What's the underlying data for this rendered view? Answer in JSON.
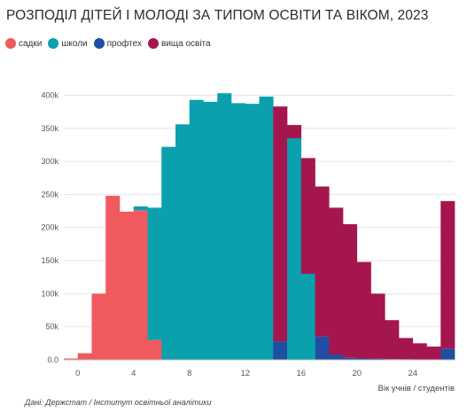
{
  "title": "РОЗПОДІЛ ДІТЕЙ І МОЛОДІ ЗА ТИПОМ ОСВІТИ ТА ВІКОМ, 2023",
  "source": "Дані: Держстат / Інститут освітньої аналітики",
  "legend": [
    {
      "label": "садки",
      "color": "#f05a5e"
    },
    {
      "label": "школи",
      "color": "#0aa0ae"
    },
    {
      "label": "профтех",
      "color": "#1f4ea3"
    },
    {
      "label": "вища освіта",
      "color": "#a5164e"
    }
  ],
  "chart_data": {
    "type": "bar",
    "stacked": true,
    "title": "РОЗПОДІЛ ДІТЕЙ І МОЛОДІ ЗА ТИПОМ ОСВІТИ ТА ВІКОМ, 2023",
    "xlabel": "Вік учнів / студентів",
    "ylabel": "",
    "xlim": [
      -1,
      27
    ],
    "ylim": [
      0,
      410000
    ],
    "grid": "horizontal",
    "legend_position": "top-left",
    "x_ticks": [
      0,
      4,
      8,
      12,
      16,
      20,
      24
    ],
    "y_ticks": [
      {
        "value": 0,
        "label": "0.0"
      },
      {
        "value": 50000,
        "label": "50k"
      },
      {
        "value": 100000,
        "label": "100k"
      },
      {
        "value": 150000,
        "label": "150k"
      },
      {
        "value": 200000,
        "label": "200k"
      },
      {
        "value": 250000,
        "label": "250k"
      },
      {
        "value": 300000,
        "label": "300k"
      },
      {
        "value": 350000,
        "label": "350k"
      },
      {
        "value": 400000,
        "label": "400k"
      }
    ],
    "x": [
      -0.5,
      0.5,
      1.5,
      2.5,
      3.5,
      4.5,
      5.5,
      6.5,
      7.5,
      8.5,
      9.5,
      10.5,
      11.5,
      12.5,
      13.5,
      14.5,
      15.5,
      16.5,
      17.5,
      18.5,
      19.5,
      20.5,
      21.5,
      22.5,
      23.5,
      24.5,
      25.5,
      26.5
    ],
    "series": [
      {
        "name": "садки",
        "color": "#f05a5e",
        "values": [
          2000,
          10000,
          100000,
          248000,
          224000,
          226000,
          30000,
          0,
          0,
          0,
          0,
          0,
          0,
          0,
          0,
          0,
          0,
          0,
          0,
          0,
          0,
          0,
          0,
          0,
          0,
          0,
          0,
          0
        ]
      },
      {
        "name": "школи",
        "color": "#0aa0ae",
        "values": [
          0,
          0,
          0,
          0,
          0,
          6000,
          200000,
          322000,
          356000,
          393000,
          390000,
          403000,
          388000,
          387000,
          398000,
          0,
          0,
          0,
          0,
          0,
          0,
          0,
          0,
          0,
          0,
          0,
          0,
          0
        ]
      },
      {
        "name": "профтех",
        "color": "#1f4ea3",
        "values": [
          0,
          0,
          0,
          0,
          0,
          0,
          0,
          0,
          0,
          0,
          0,
          0,
          0,
          0,
          0,
          28000,
          45000,
          58000,
          35000,
          8000,
          3000,
          2000,
          1500,
          1000,
          800,
          600,
          500,
          17000
        ]
      },
      {
        "name": "вища освіта",
        "color": "#a5164e",
        "values": [
          0,
          0,
          0,
          0,
          0,
          0,
          0,
          0,
          0,
          0,
          0,
          0,
          0,
          0,
          0,
          355000,
          0,
          0,
          0,
          0,
          0,
          0,
          0,
          0,
          0,
          0,
          0,
          0
        ]
      }
    ],
    "overlays": [
      {
        "series": "школи",
        "x": [
          15.5,
          16.5
        ],
        "values": [
          335000,
          130000
        ]
      },
      {
        "series": "вища освіта",
        "x": [
          15.5,
          16.5,
          17.5,
          18.5,
          19.5,
          20.5,
          21.5,
          22.5,
          23.5,
          24.5,
          25.5,
          26.5
        ],
        "values": [
          355000,
          305000,
          262000,
          230000,
          205000,
          148000,
          100000,
          60000,
          33000,
          25000,
          20000,
          240000
        ]
      }
    ]
  }
}
